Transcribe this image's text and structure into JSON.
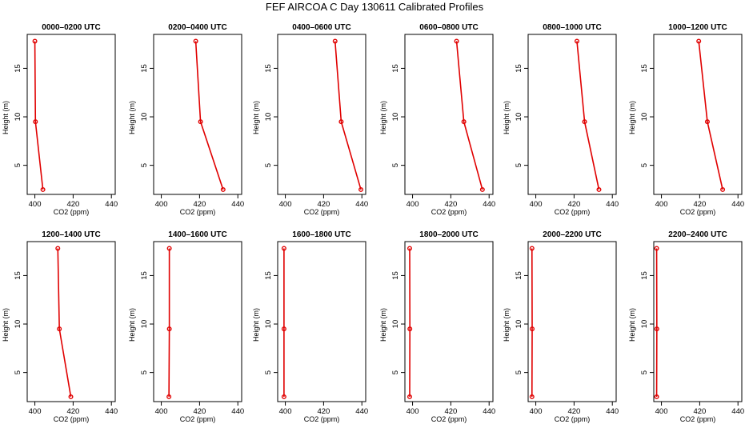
{
  "chart_data": {
    "type": "line",
    "title": "FEF AIRCOA C  Day 130611  Calibrated Profiles",
    "xlabel": "CO2 (ppm)",
    "ylabel": "Height (m)",
    "xlim": [
      396,
      442
    ],
    "ylim": [
      2,
      18.5
    ],
    "xticks": [
      400,
      420,
      440
    ],
    "yticks": [
      5,
      10,
      15
    ],
    "grid": false,
    "colors": {
      "series": "#e00000",
      "axes": "#000000"
    },
    "panels": [
      {
        "title": "0000–0200 UTC",
        "points": [
          {
            "x": 400.0,
            "y": 17.8
          },
          {
            "x": 400.3,
            "y": 9.5
          },
          {
            "x": 404.2,
            "y": 2.5
          }
        ]
      },
      {
        "title": "0200–0400 UTC",
        "points": [
          {
            "x": 418.0,
            "y": 17.8
          },
          {
            "x": 420.5,
            "y": 9.5
          },
          {
            "x": 432.3,
            "y": 2.5
          }
        ]
      },
      {
        "title": "0400–0600 UTC",
        "points": [
          {
            "x": 426.0,
            "y": 17.8
          },
          {
            "x": 429.2,
            "y": 9.5
          },
          {
            "x": 439.5,
            "y": 2.5
          }
        ]
      },
      {
        "title": "0600–0800 UTC",
        "points": [
          {
            "x": 423.0,
            "y": 17.8
          },
          {
            "x": 426.8,
            "y": 9.5
          },
          {
            "x": 436.5,
            "y": 2.5
          }
        ]
      },
      {
        "title": "0800–1000 UTC",
        "points": [
          {
            "x": 421.5,
            "y": 17.8
          },
          {
            "x": 425.5,
            "y": 9.5
          },
          {
            "x": 433.0,
            "y": 2.5
          }
        ]
      },
      {
        "title": "1000–1200 UTC",
        "points": [
          {
            "x": 419.5,
            "y": 17.8
          },
          {
            "x": 424.0,
            "y": 9.5
          },
          {
            "x": 432.0,
            "y": 2.5
          }
        ]
      },
      {
        "title": "1200–1400 UTC",
        "points": [
          {
            "x": 412.0,
            "y": 17.8
          },
          {
            "x": 412.8,
            "y": 9.5
          },
          {
            "x": 418.8,
            "y": 2.5
          }
        ]
      },
      {
        "title": "1400–1600 UTC",
        "points": [
          {
            "x": 404.2,
            "y": 17.8
          },
          {
            "x": 404.2,
            "y": 9.5
          },
          {
            "x": 404.0,
            "y": 2.5
          }
        ]
      },
      {
        "title": "1600–1800 UTC",
        "points": [
          {
            "x": 399.3,
            "y": 17.8
          },
          {
            "x": 399.3,
            "y": 9.5
          },
          {
            "x": 399.3,
            "y": 2.5
          }
        ]
      },
      {
        "title": "1800–2000 UTC",
        "points": [
          {
            "x": 398.5,
            "y": 17.8
          },
          {
            "x": 398.6,
            "y": 9.5
          },
          {
            "x": 398.5,
            "y": 2.5
          }
        ]
      },
      {
        "title": "2000–2200 UTC",
        "points": [
          {
            "x": 398.0,
            "y": 17.8
          },
          {
            "x": 398.1,
            "y": 9.5
          },
          {
            "x": 398.0,
            "y": 2.5
          }
        ]
      },
      {
        "title": "2200–2400 UTC",
        "points": [
          {
            "x": 397.5,
            "y": 17.8
          },
          {
            "x": 397.6,
            "y": 9.5
          },
          {
            "x": 397.5,
            "y": 2.5
          }
        ]
      }
    ]
  }
}
